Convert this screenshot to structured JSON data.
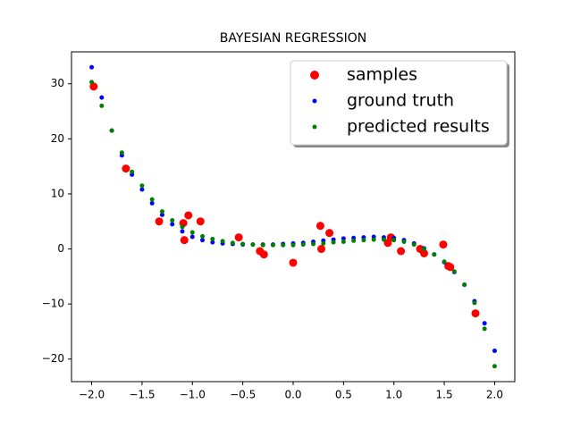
{
  "chart_data": {
    "type": "scatter",
    "title": "BAYESIAN REGRESSION",
    "xlim": [
      -2.2,
      2.2
    ],
    "ylim": [
      -24.1,
      35.8
    ],
    "xticks": [
      {
        "value": -2,
        "label": "−2.0"
      },
      {
        "value": -1.5,
        "label": "−1.5"
      },
      {
        "value": -1,
        "label": "−1.0"
      },
      {
        "value": -0.5,
        "label": "−0.5"
      },
      {
        "value": 0,
        "label": "0.0"
      },
      0.5,
      {
        "value": 1,
        "label": "1.0"
      },
      1.5,
      {
        "value": 2,
        "label": "2.0"
      }
    ],
    "yticks": [
      {
        "value": -20,
        "label": "−20"
      },
      {
        "value": -10,
        "label": "−10"
      },
      0,
      10,
      20,
      30
    ],
    "legend": "upper right",
    "series": [
      {
        "name": "samples",
        "color": "#ff0000",
        "x": [
          -1.98,
          -1.66,
          -1.33,
          -1.09,
          -1.04,
          -1.08,
          -0.92,
          -0.54,
          -0.33,
          -0.29,
          0.0,
          0.27,
          0.28,
          0.36,
          0.94,
          0.97,
          1.07,
          1.26,
          1.3,
          1.49,
          1.54,
          1.56,
          1.81
        ],
        "values": [
          29.5,
          14.6,
          5.0,
          4.7,
          6.1,
          1.6,
          5.0,
          2.1,
          -0.4,
          -1.0,
          -2.5,
          4.2,
          0.0,
          2.9,
          1.1,
          2.1,
          -0.4,
          0.0,
          -0.8,
          0.8,
          -3.1,
          -3.3,
          -11.7
        ]
      },
      {
        "name": "ground truth",
        "color": "#0000ff",
        "x": [
          -2.0,
          -1.9,
          -1.8,
          -1.7,
          -1.6,
          -1.5,
          -1.4,
          -1.3,
          -1.2,
          -1.1,
          -1.0,
          -0.9,
          -0.8,
          -0.7,
          -0.6,
          -0.5,
          -0.4,
          -0.3,
          -0.2,
          -0.1,
          0.0,
          0.1,
          0.2,
          0.3,
          0.4,
          0.5,
          0.6,
          0.7,
          0.8,
          0.9,
          1.0,
          1.1,
          1.2,
          1.3,
          1.4,
          1.5,
          1.6,
          1.7,
          1.8,
          1.9,
          2.0
        ],
        "values": [
          33.0,
          27.5,
          21.5,
          17.0,
          13.5,
          10.8,
          8.3,
          6.2,
          4.5,
          3.2,
          2.2,
          1.6,
          1.2,
          1.0,
          0.9,
          0.8,
          0.8,
          0.8,
          0.8,
          0.9,
          1.0,
          1.1,
          1.3,
          1.5,
          1.7,
          1.9,
          2.0,
          2.1,
          2.2,
          2.1,
          2.0,
          1.6,
          1.0,
          0.1,
          -1.0,
          -2.4,
          -4.2,
          -6.5,
          -9.5,
          -13.5,
          -18.5
        ]
      },
      {
        "name": "predicted results",
        "color": "#008000",
        "x": [
          -2.0,
          -1.9,
          -1.8,
          -1.7,
          -1.6,
          -1.5,
          -1.4,
          -1.3,
          -1.2,
          -1.1,
          -1.0,
          -0.9,
          -0.8,
          -0.7,
          -0.6,
          -0.5,
          -0.4,
          -0.3,
          -0.2,
          -0.1,
          0.0,
          0.1,
          0.2,
          0.3,
          0.4,
          0.5,
          0.6,
          0.7,
          0.8,
          0.9,
          1.0,
          1.1,
          1.2,
          1.3,
          1.4,
          1.5,
          1.6,
          1.7,
          1.8,
          1.9,
          2.0
        ],
        "values": [
          30.3,
          26.0,
          21.5,
          17.5,
          14.0,
          11.5,
          9.0,
          6.8,
          5.2,
          4.0,
          3.0,
          2.3,
          1.8,
          1.4,
          1.1,
          0.9,
          0.8,
          0.7,
          0.7,
          0.7,
          0.7,
          0.8,
          0.9,
          1.0,
          1.2,
          1.3,
          1.5,
          1.6,
          1.7,
          1.7,
          1.6,
          1.3,
          0.8,
          0.0,
          -1.0,
          -2.3,
          -4.1,
          -6.5,
          -9.8,
          -14.5,
          -21.3
        ]
      }
    ]
  }
}
